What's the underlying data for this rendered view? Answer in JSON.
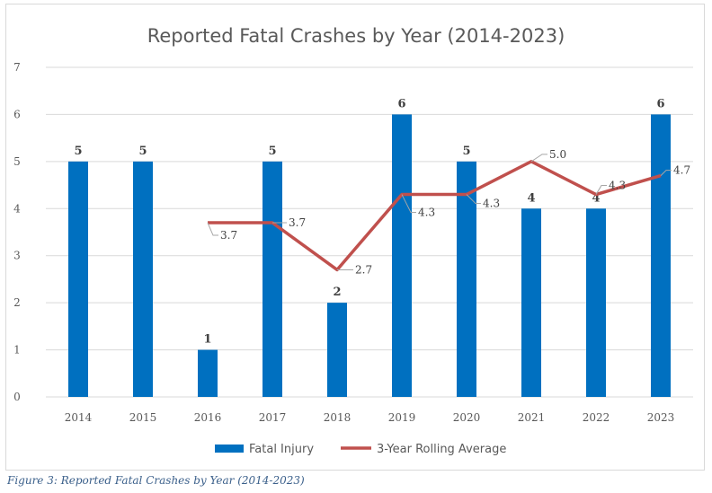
{
  "chart_data": {
    "type": "bar",
    "title": "Reported Fatal Crashes by Year (2014-2023)",
    "categories": [
      "2014",
      "2015",
      "2016",
      "2017",
      "2018",
      "2019",
      "2020",
      "2021",
      "2022",
      "2023"
    ],
    "ylim": [
      0,
      7
    ],
    "yticks": [
      "0",
      "1",
      "2",
      "3",
      "4",
      "5",
      "6",
      "7"
    ],
    "grid": true,
    "legend_position": "bottom",
    "series": [
      {
        "name": "Fatal Injury",
        "type": "bar",
        "color": "#0070c0",
        "values": [
          5,
          5,
          1,
          5,
          2,
          6,
          5,
          4,
          4,
          6
        ],
        "labels": [
          "5",
          "5",
          "1",
          "5",
          "2",
          "6",
          "5",
          "4",
          "4",
          "6"
        ]
      },
      {
        "name": "3-Year Rolling Average",
        "type": "line",
        "color": "#c0504d",
        "values": [
          null,
          null,
          3.7,
          3.7,
          2.7,
          4.3,
          4.3,
          5.0,
          4.3,
          4.7
        ],
        "labels": [
          null,
          null,
          "3.7",
          "3.7",
          "2.7",
          "4.3",
          "4.3",
          "5.0",
          "4.3",
          "4.7"
        ]
      }
    ]
  },
  "caption": "Figure 3: Reported Fatal Crashes by Year (2014-2023)"
}
